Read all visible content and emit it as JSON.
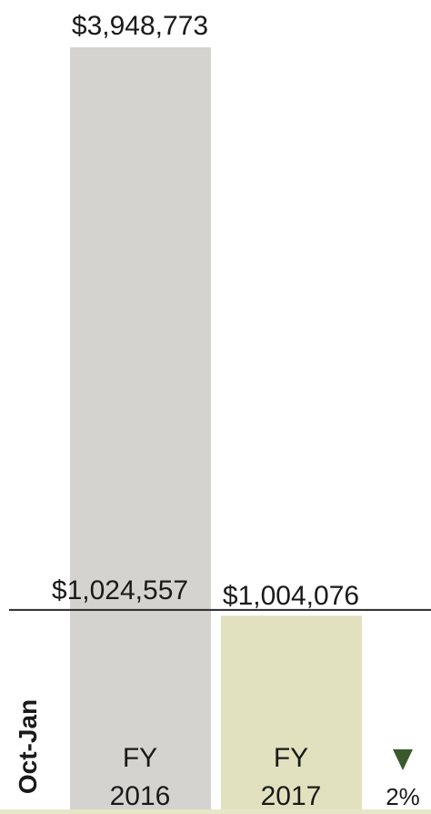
{
  "chart_data": {
    "type": "bar",
    "categories": [
      "FY 2016",
      "FY 2017"
    ],
    "category_lines": [
      [
        "FY",
        "2016"
      ],
      [
        "FY",
        "2017"
      ]
    ],
    "series": [
      {
        "values": [
          3948773,
          1004076
        ]
      }
    ],
    "reference_value": 1024557,
    "reference_label": "$1,024,557",
    "value_labels": [
      "$3,948,773",
      "$1,004,076"
    ],
    "period_label": "Oct-Jan",
    "change": {
      "direction": "down",
      "label": "2%"
    },
    "colors": {
      "bar_2016": "#d4d3cf",
      "bar_2017": "#e2e1bf",
      "change_arrow": "#3a5a2e",
      "text": "#1a1a1a",
      "baseline": "#e8e6c8"
    }
  }
}
